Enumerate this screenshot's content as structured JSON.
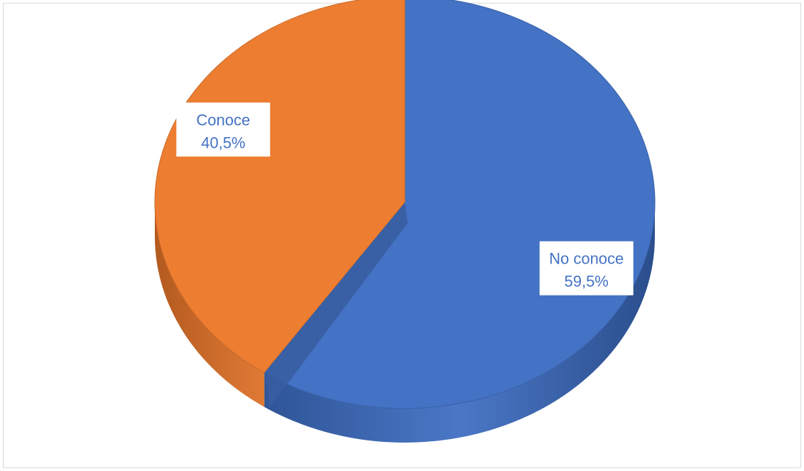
{
  "chart_data": {
    "type": "pie",
    "style": "3d",
    "slices": [
      {
        "category": "No conoce",
        "value": 59.5,
        "label": "59,5%",
        "color": "#4472C4"
      },
      {
        "category": "Conoce",
        "value": 40.5,
        "label": "40,5%",
        "color": "#ED7D31"
      }
    ],
    "data_label_color": "#4472C4",
    "legend": "none",
    "grid": false
  }
}
